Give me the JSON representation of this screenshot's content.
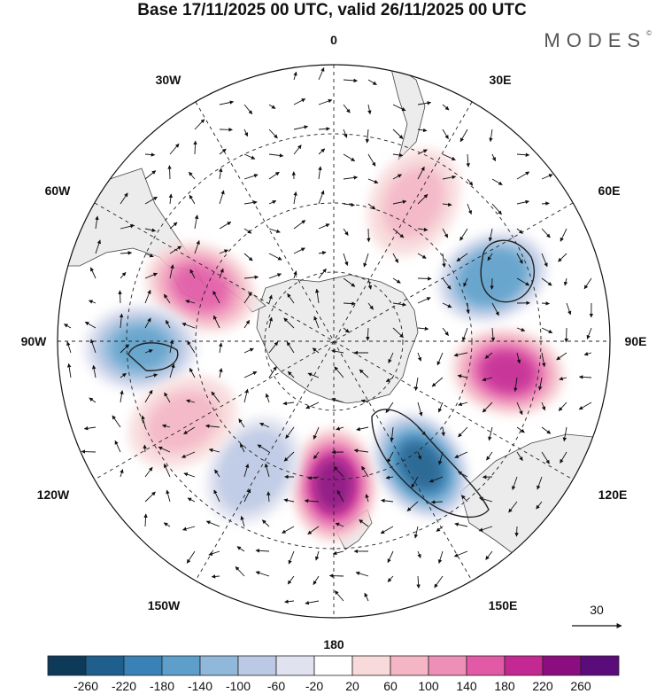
{
  "header": {
    "title": "Base 17/11/2025 00 UTC, valid 26/11/2025 00 UTC",
    "logo_text": "MODES",
    "logo_mark": "©"
  },
  "map": {
    "projection": "south-polar-stereographic",
    "longitude_labels": {
      "top": "0",
      "bottom": "180",
      "left": "90W",
      "right": "90E",
      "upper_left_1": "30W",
      "upper_left_2": "60W",
      "upper_right_1": "30E",
      "upper_right_2": "60E",
      "lower_left_1": "120W",
      "lower_left_2": "150W",
      "lower_right_1": "120E",
      "lower_right_2": "150E"
    },
    "reference_vector": "30",
    "anomaly_cells": [
      {
        "name": "positive-anomaly-south-pacific",
        "value": 220,
        "lon": 180,
        "r": 0.52
      },
      {
        "name": "negative-anomaly-tasman",
        "value": -240,
        "lon": 145,
        "r": 0.55
      },
      {
        "name": "positive-anomaly-indian-ocean",
        "value": 180,
        "lon": 100,
        "r": 0.64
      },
      {
        "name": "negative-anomaly-southern-indian",
        "value": -180,
        "lon": 68,
        "r": 0.62
      },
      {
        "name": "positive-anomaly-drake-passage",
        "value": 140,
        "lon": -68,
        "r": 0.52
      },
      {
        "name": "negative-anomaly-southeast-pacific",
        "value": -160,
        "lon": -92,
        "r": 0.7
      },
      {
        "name": "positive-anomaly-south-atlantic",
        "value": 80,
        "lon": 30,
        "r": 0.58
      },
      {
        "name": "negative-anomaly-central-pacific",
        "value": -100,
        "lon": -148,
        "r": 0.55
      },
      {
        "name": "positive-anomaly-east-pacific",
        "value": 80,
        "lon": -118,
        "r": 0.62
      }
    ]
  },
  "colorbar": {
    "colors": [
      "#0e3a5a",
      "#1e5f8e",
      "#3a82b6",
      "#5d9fca",
      "#8fb8da",
      "#bcc9e4",
      "#e0e2f0",
      "#ffffff",
      "#f8dada",
      "#f4b5c5",
      "#ee8fb7",
      "#e25aa6",
      "#c42892",
      "#8b0d7f",
      "#5a0c7a"
    ],
    "labels": [
      "-260",
      "-220",
      "-180",
      "-140",
      "-100",
      "-60",
      "-20",
      "20",
      "60",
      "100",
      "140",
      "180",
      "220",
      "260"
    ]
  }
}
